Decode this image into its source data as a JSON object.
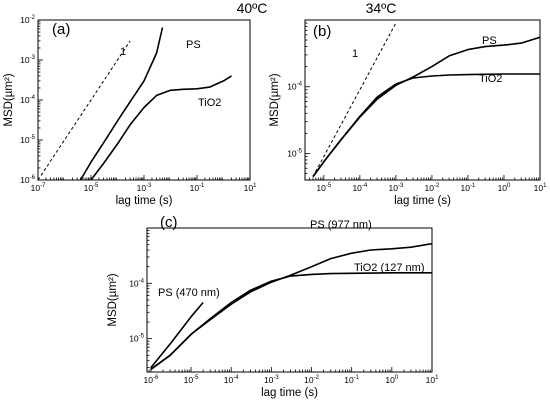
{
  "chart_data": [
    {
      "type": "line",
      "panel_label": "(a)",
      "title": "40ºC",
      "xlabel": "lag time (s)",
      "ylabel": "MSD(µm²)",
      "x_scale": "log",
      "y_scale": "log",
      "xlim": [
        1e-07,
        10
      ],
      "ylim": [
        1e-06,
        0.01
      ],
      "x_ticks": [
        "10⁻⁷",
        "10⁻⁵",
        "10⁻³",
        "10⁻¹",
        "10¹"
      ],
      "y_ticks": [
        "10⁻⁶",
        "10⁻⁵",
        "10⁻⁴",
        "10⁻³",
        "10⁻²"
      ],
      "series": [
        {
          "name": "PS",
          "x": [
            4e-06,
            1e-05,
            3e-05,
            0.0001,
            0.0003,
            0.001,
            0.003,
            0.005
          ],
          "y": [
            1e-06,
            2.8e-06,
            8.5e-06,
            3e-05,
            9e-05,
            0.0003,
            0.0015,
            0.0065
          ]
        },
        {
          "name": "TiO2",
          "x": [
            1e-05,
            3e-05,
            0.0001,
            0.0003,
            0.001,
            0.003,
            0.01,
            0.03,
            0.1,
            0.3,
            1,
            2
          ],
          "y": [
            1e-06,
            2.6e-06,
            8e-06,
            2.4e-05,
            6.5e-05,
            0.00013,
            0.000175,
            0.000185,
            0.00019,
            0.00021,
            0.0003,
            0.0004
          ]
        }
      ],
      "guide": {
        "label": "1",
        "x": [
          1e-07,
          0.0003
        ],
        "y": [
          1e-06,
          0.003
        ]
      },
      "labels": [
        "PS",
        "TiO2"
      ]
    },
    {
      "type": "line",
      "panel_label": "(b)",
      "title": "34ºC",
      "xlabel": "lag time (s)",
      "ylabel": "MSD(µm²)",
      "x_scale": "log",
      "y_scale": "log",
      "xlim": [
        3e-06,
        10
      ],
      "ylim": [
        4e-06,
        0.001
      ],
      "x_ticks": [
        "10⁻⁵",
        "10⁻⁴",
        "10⁻³",
        "10⁻²",
        "10⁻¹",
        "10⁰",
        "10¹"
      ],
      "y_ticks": [
        "10⁻⁵",
        "10⁻⁴"
      ],
      "series": [
        {
          "name": "PS",
          "x": [
            5e-06,
            1e-05,
            3e-05,
            0.0001,
            0.0003,
            0.001,
            0.003,
            0.01,
            0.03,
            0.1,
            0.3,
            1,
            3,
            10
          ],
          "y": [
            4.5e-06,
            7.5e-06,
            1.6e-05,
            3.5e-05,
            6.5e-05,
            0.000105,
            0.00014,
            0.0002,
            0.00029,
            0.00036,
            0.0004,
            0.00042,
            0.00045,
            0.00055
          ]
        },
        {
          "name": "TiO2",
          "x": [
            5e-06,
            1e-05,
            3e-05,
            0.0001,
            0.0003,
            0.001,
            0.003,
            0.01,
            0.03,
            0.1,
            1,
            10
          ],
          "y": [
            4.5e-06,
            7.5e-06,
            1.6e-05,
            3.6e-05,
            7e-05,
            0.00011,
            0.000135,
            0.000145,
            0.00015,
            0.000152,
            0.000155,
            0.000155
          ]
        }
      ],
      "guide": {
        "label": "1",
        "x": [
          5e-06,
          0.001
        ],
        "y": [
          4.5e-06,
          0.0009
        ]
      },
      "labels": [
        "PS",
        "TiO2"
      ]
    },
    {
      "type": "line",
      "panel_label": "(c)",
      "xlabel": "lag time (s)",
      "ylabel": "MSD(µm²)",
      "x_scale": "log",
      "y_scale": "log",
      "xlim": [
        8e-07,
        10
      ],
      "ylim": [
        2.5e-06,
        0.001
      ],
      "x_ticks": [
        "10⁻⁶",
        "10⁻⁵",
        "10⁻⁴",
        "10⁻³",
        "10⁻²",
        "10⁻¹",
        "10⁰",
        "10¹"
      ],
      "y_ticks": [
        "10⁻⁵",
        "10⁻⁴"
      ],
      "series": [
        {
          "name": "PS (470 nm)",
          "x": [
            1e-06,
            3e-06,
            1e-05,
            2e-05
          ],
          "y": [
            3e-06,
            8e-06,
            2.5e-05,
            4.5e-05
          ]
        },
        {
          "name": "PS (977 nm)",
          "x": [
            1e-06,
            3e-06,
            1e-05,
            3e-05,
            0.0001,
            0.0003,
            0.001,
            0.003,
            0.01,
            0.03,
            0.1,
            0.3,
            1,
            3,
            10
          ],
          "y": [
            2.8e-06,
            5e-06,
            1.2e-05,
            2.2e-05,
            4.2e-05,
            7e-05,
            0.000105,
            0.00014,
            0.0002,
            0.00028,
            0.00035,
            0.0004,
            0.00042,
            0.00045,
            0.00052
          ]
        },
        {
          "name": "TiO2 (127 nm)",
          "x": [
            1e-06,
            3e-06,
            1e-05,
            3e-05,
            0.0001,
            0.0003,
            0.001,
            0.003,
            0.01,
            0.03,
            0.1,
            1,
            10
          ],
          "y": [
            2.8e-06,
            5e-06,
            1.2e-05,
            2.3e-05,
            4.5e-05,
            7.5e-05,
            0.00011,
            0.000135,
            0.000145,
            0.00015,
            0.000152,
            0.000155,
            0.000155
          ]
        }
      ],
      "labels": [
        "PS (470 nm)",
        "PS (977 nm)",
        "TiO2 (127 nm)"
      ]
    }
  ]
}
